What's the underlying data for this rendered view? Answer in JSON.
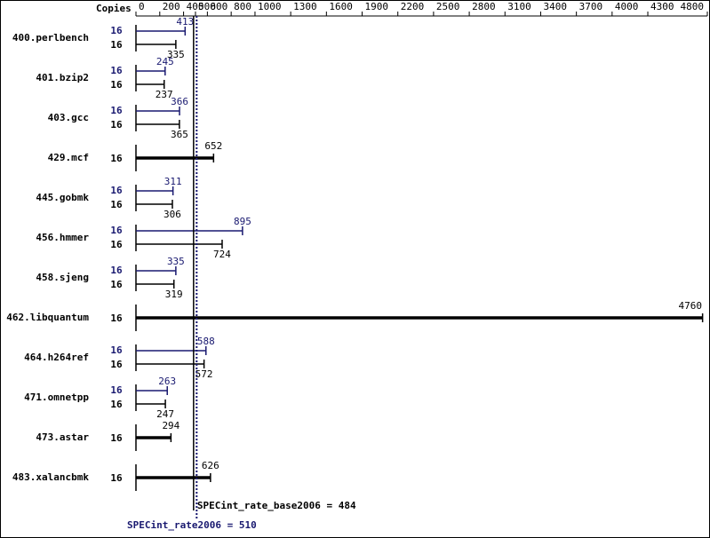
{
  "chart_data": {
    "type": "bar",
    "orientation": "horizontal",
    "copies_label": "Copies",
    "categories": [
      "400.perlbench",
      "401.bzip2",
      "403.gcc",
      "429.mcf",
      "445.gobmk",
      "456.hmmer",
      "458.sjeng",
      "462.libquantum",
      "464.h264ref",
      "471.omnetpp",
      "473.astar",
      "483.xalancbmk"
    ],
    "series": [
      {
        "color": "#191970",
        "values": [
          413,
          245,
          366,
          null,
          311,
          895,
          335,
          null,
          588,
          263,
          null,
          null
        ],
        "copies": [
          16,
          16,
          16,
          null,
          16,
          16,
          16,
          null,
          16,
          16,
          null,
          null
        ]
      },
      {
        "color": "#000000",
        "values": [
          335,
          237,
          365,
          652,
          306,
          724,
          319,
          4760,
          572,
          247,
          294,
          626
        ],
        "copies": [
          16,
          16,
          16,
          16,
          16,
          16,
          16,
          16,
          16,
          16,
          16,
          16
        ]
      }
    ],
    "xlim": [
      0,
      4800
    ],
    "xticks": [
      0,
      200,
      400,
      500,
      600,
      800,
      1000,
      1300,
      1600,
      1900,
      2200,
      2500,
      2800,
      3100,
      3400,
      3700,
      4000,
      4300,
      4800
    ],
    "reference_lines": [
      {
        "value": 484,
        "label": "SPECint_rate_base2006 = 484",
        "color": "#000000",
        "style": "solid"
      },
      {
        "value": 510,
        "label": "SPECint_rate2006 = 510",
        "color": "#191970",
        "style": "dotted"
      }
    ]
  }
}
